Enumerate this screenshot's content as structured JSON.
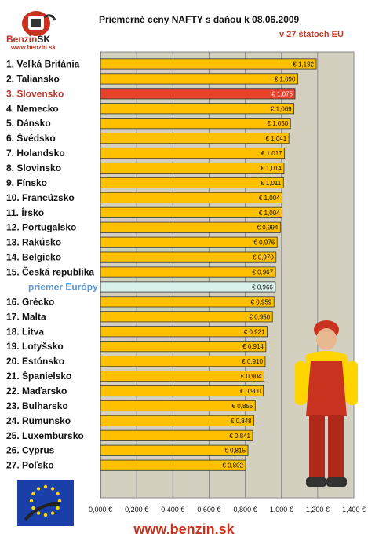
{
  "logo": {
    "brand": "Benzin",
    "brand_suffix": "SK",
    "url": "www.benzin.sk"
  },
  "title": "Priemerné ceny NAFTY s daňou k 08.06.2009",
  "subtitle": "v 27 štátoch EU",
  "footer_url": "www.benzin.sk",
  "colors": {
    "bar": "#ffc000",
    "highlight": "#e8422a",
    "average": "#d8f0ea",
    "plot_bg": "#d4d0c0",
    "label_red": "#c0392b",
    "label_blue": "#5b9bd5"
  },
  "chart_data": {
    "type": "bar",
    "orientation": "horizontal",
    "title": "Priemerné ceny NAFTY s daňou k 08.06.2009",
    "subtitle": "v 27 štátoch EU",
    "xlim": [
      0,
      1.4
    ],
    "ticks": [
      "0,000 €",
      "0,200 €",
      "0,400 €",
      "0,600 €",
      "0,800 €",
      "1,000 €",
      "1,200 €",
      "1,400 €"
    ],
    "grid": true,
    "categories": [
      "1. Veľká Británia",
      "2. Taliansko",
      "3. Slovensko",
      "4. Nemecko",
      "5. Dánsko",
      "6. Švédsko",
      "7. Holandsko",
      "8. Slovinsko",
      "9. Fínsko",
      "10. Francúzsko",
      "11. Írsko",
      "12. Portugalsko",
      "13. Rakúsko",
      "14. Belgicko",
      "15. Česká republika",
      "priemer Európy",
      "16. Grécko",
      "17. Malta",
      "18. Litva",
      "19. Lotyšsko",
      "20. Estónsko",
      "21. Španielsko",
      "22. Maďarsko",
      "23. Bulharsko",
      "24. Rumunsko",
      "25. Luxembursko",
      "26. Cyprus",
      "27. Poľsko"
    ],
    "values": [
      1.192,
      1.09,
      1.075,
      1.069,
      1.05,
      1.041,
      1.017,
      1.014,
      1.011,
      1.004,
      1.004,
      0.994,
      0.976,
      0.97,
      0.967,
      0.966,
      0.959,
      0.95,
      0.921,
      0.914,
      0.91,
      0.904,
      0.9,
      0.855,
      0.848,
      0.841,
      0.815,
      0.802
    ],
    "value_labels": [
      "€ 1,192",
      "€ 1,090",
      "€ 1,075",
      "€ 1,069",
      "€ 1,050",
      "€ 1,041",
      "€ 1,017",
      "€ 1,014",
      "€ 1,011",
      "€ 1,004",
      "€ 1,004",
      "€ 0,994",
      "€ 0,976",
      "€ 0,970",
      "€ 0,967",
      "€ 0,966",
      "€ 0,959",
      "€ 0,950",
      "€ 0,921",
      "€ 0,914",
      "€ 0,910",
      "€ 0,904",
      "€ 0,900",
      "€ 0,855",
      "€ 0,848",
      "€ 0,841",
      "€ 0,815",
      "€ 0,802"
    ],
    "highlight_index": 2,
    "average_index": 15
  }
}
